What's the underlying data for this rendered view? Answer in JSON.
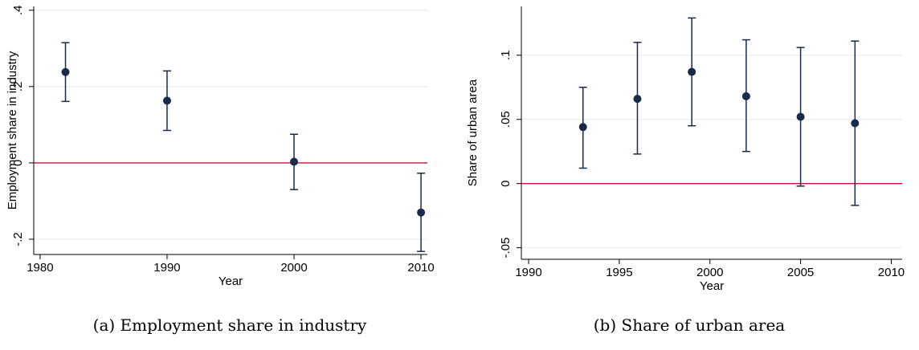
{
  "chart_data": [
    {
      "type": "scatter",
      "title": "",
      "xlabel": "Year",
      "ylabel": "Employment share in industry",
      "caption": "(a) Employment share in industry",
      "xlim": [
        1979.5,
        2010.5
      ],
      "ylim": [
        -0.24,
        0.41
      ],
      "xticks": [
        1980,
        1990,
        2000,
        2010
      ],
      "xtick_labels": [
        "1980",
        "1990",
        "2000",
        "2010"
      ],
      "yticks": [
        -0.2,
        0,
        0.2,
        0.4
      ],
      "ytick_labels": [
        "-.2",
        "0",
        ".2",
        ".4"
      ],
      "grid": true,
      "reference_line": 0,
      "points": [
        {
          "x": 1982,
          "y": 0.238,
          "lo": 0.161,
          "hi": 0.315
        },
        {
          "x": 1990,
          "y": 0.163,
          "lo": 0.085,
          "hi": 0.241
        },
        {
          "x": 2000,
          "y": 0.003,
          "lo": -0.07,
          "hi": 0.075
        },
        {
          "x": 2010,
          "y": -0.13,
          "lo": -0.232,
          "hi": -0.027
        }
      ],
      "colors": {
        "marker": "#1a2a4a",
        "reference_line": "#c8103c",
        "grid": "#e8e8e8"
      }
    },
    {
      "type": "scatter",
      "title": "",
      "xlabel": "Year",
      "ylabel": "Share of urban area",
      "caption": "(b) Share of urban area",
      "xlim": [
        1989.6,
        2010.6
      ],
      "ylim": [
        -0.059,
        0.138
      ],
      "xticks": [
        1990,
        1995,
        2000,
        2005,
        2010
      ],
      "xtick_labels": [
        "1990",
        "1995",
        "2000",
        "2005",
        "2010"
      ],
      "yticks": [
        -0.05,
        0,
        0.05,
        0.1
      ],
      "ytick_labels": [
        "-.05",
        "0",
        ".05",
        ".1"
      ],
      "grid": true,
      "reference_line": 0,
      "points": [
        {
          "x": 1993,
          "y": 0.044,
          "lo": 0.012,
          "hi": 0.075
        },
        {
          "x": 1996,
          "y": 0.066,
          "lo": 0.023,
          "hi": 0.11
        },
        {
          "x": 1999,
          "y": 0.087,
          "lo": 0.045,
          "hi": 0.129
        },
        {
          "x": 2002,
          "y": 0.068,
          "lo": 0.025,
          "hi": 0.112
        },
        {
          "x": 2005,
          "y": 0.052,
          "lo": -0.002,
          "hi": 0.106
        },
        {
          "x": 2008,
          "y": 0.047,
          "lo": -0.017,
          "hi": 0.111
        }
      ],
      "colors": {
        "marker": "#1a2a4a",
        "reference_line": "#c8103c",
        "grid": "#e8e8e8"
      }
    }
  ]
}
